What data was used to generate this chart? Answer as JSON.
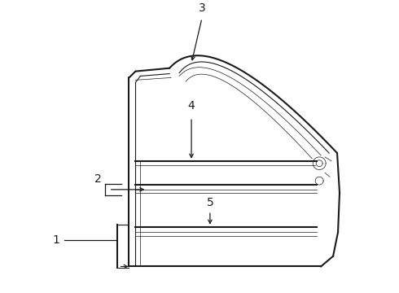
{
  "background_color": "#ffffff",
  "line_color": "#1a1a1a",
  "lw_outer": 1.5,
  "lw_inner": 0.8,
  "lw_thin": 0.5,
  "fig_width": 4.9,
  "fig_height": 3.6,
  "dpi": 100
}
